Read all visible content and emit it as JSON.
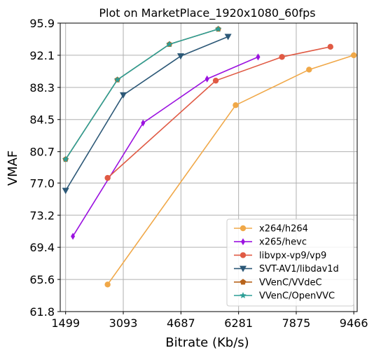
{
  "chart_data": {
    "type": "line",
    "title": "Plot on MarketPlace_1920x1080_60fps",
    "xlabel": "Bitrate (Kb/s)",
    "ylabel": "VMAF",
    "xlim": [
      1350,
      9560
    ],
    "ylim": [
      61.8,
      95.9
    ],
    "xticks": [
      1499,
      3093,
      4687,
      6281,
      7875,
      9466
    ],
    "yticks": [
      61.8,
      65.6,
      69.4,
      73.2,
      77.0,
      80.7,
      84.5,
      88.3,
      92.1,
      95.9
    ],
    "ytick_labels": [
      "61.8",
      "65.6",
      "69.4",
      "73.2",
      "77.0",
      "80.7",
      "84.5",
      "88.3",
      "92.1",
      "95.9"
    ],
    "grid": true,
    "legend_position": "lower-right",
    "series": [
      {
        "name": "x264/h264",
        "color": "#f0a848",
        "marker": "circle",
        "x": [
          2660,
          6200,
          8230,
          9466
        ],
        "y": [
          65.0,
          86.2,
          90.4,
          92.1
        ]
      },
      {
        "name": "x265/hevc",
        "color": "#9b12e0",
        "marker": "thin-diamond",
        "x": [
          1700,
          3640,
          5410,
          6820
        ],
        "y": [
          70.7,
          84.1,
          89.3,
          91.9
        ]
      },
      {
        "name": "libvpx-vp9/vp9",
        "color": "#e05a44",
        "marker": "circle",
        "x": [
          2660,
          5650,
          7480,
          8820
        ],
        "y": [
          77.6,
          89.1,
          91.9,
          93.1
        ]
      },
      {
        "name": "SVT-AV1/libdav1d",
        "color": "#2c5877",
        "marker": "triangle-down",
        "x": [
          1499,
          3093,
          4680,
          5990
        ],
        "y": [
          76.1,
          87.4,
          92.0,
          94.3
        ]
      },
      {
        "name": "VVenC/VVdeC",
        "color": "#b8641c",
        "marker": "pentagon",
        "x": [
          1499,
          2930,
          4370,
          5720
        ],
        "y": [
          79.8,
          89.2,
          93.4,
          95.2
        ]
      },
      {
        "name": "VVenC/OpenVVC",
        "color": "#2b9e96",
        "marker": "star",
        "x": [
          1499,
          2930,
          4370,
          5720
        ],
        "y": [
          79.8,
          89.2,
          93.4,
          95.2
        ]
      }
    ]
  }
}
